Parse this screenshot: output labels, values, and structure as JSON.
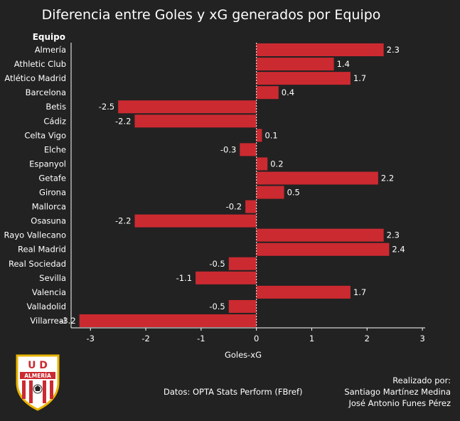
{
  "chart_data": {
    "type": "bar",
    "orientation": "horizontal",
    "title": "Diferencia entre Goles y xG generados por Equipo",
    "ylabel": "Equipo",
    "xlabel": "Goles-xG",
    "xlim": [
      -3.35,
      3.05
    ],
    "xticks": [
      -3,
      -2,
      -1,
      0,
      1,
      2,
      3
    ],
    "xtick_labels": [
      "-3",
      "-2",
      "-1",
      "0",
      "1",
      "2",
      "3"
    ],
    "bar_color": "#cc2a31",
    "categories": [
      "Almería",
      "Athletic Club",
      "Atlético Madrid",
      "Barcelona",
      "Betis",
      "Cádiz",
      "Celta Vigo",
      "Elche",
      "Espanyol",
      "Getafe",
      "Girona",
      "Mallorca",
      "Osasuna",
      "Rayo Vallecano",
      "Real Madrid",
      "Real Sociedad",
      "Sevilla",
      "Valencia",
      "Valladolid",
      "Villarreal"
    ],
    "values": [
      2.3,
      1.4,
      1.7,
      0.4,
      -2.5,
      -2.2,
      0.1,
      -0.3,
      0.2,
      2.2,
      0.5,
      -0.2,
      -2.2,
      2.3,
      2.4,
      -0.5,
      -1.1,
      1.7,
      -0.5,
      -3.2
    ],
    "value_labels": [
      "2.3",
      "1.4",
      "1.7",
      "0.4",
      "-2.5",
      "-2.2",
      "0.1",
      "-0.3",
      "0.2",
      "2.2",
      "0.5",
      "-0.2",
      "-2.2",
      "2.3",
      "2.4",
      "-0.5",
      "-1.1",
      "1.7",
      "-0.5",
      "-3.2"
    ],
    "grid": false,
    "zero_line": "dashed"
  },
  "footer": {
    "source": "Datos: OPTA Stats Perform (FBref)",
    "credit_heading": "Realizado por:",
    "author_1": "Santiago Martínez Medina",
    "author_2": "José Antonio Funes Pérez",
    "logo_text_top": "U D",
    "logo_text_band": "ALMERÍA"
  }
}
